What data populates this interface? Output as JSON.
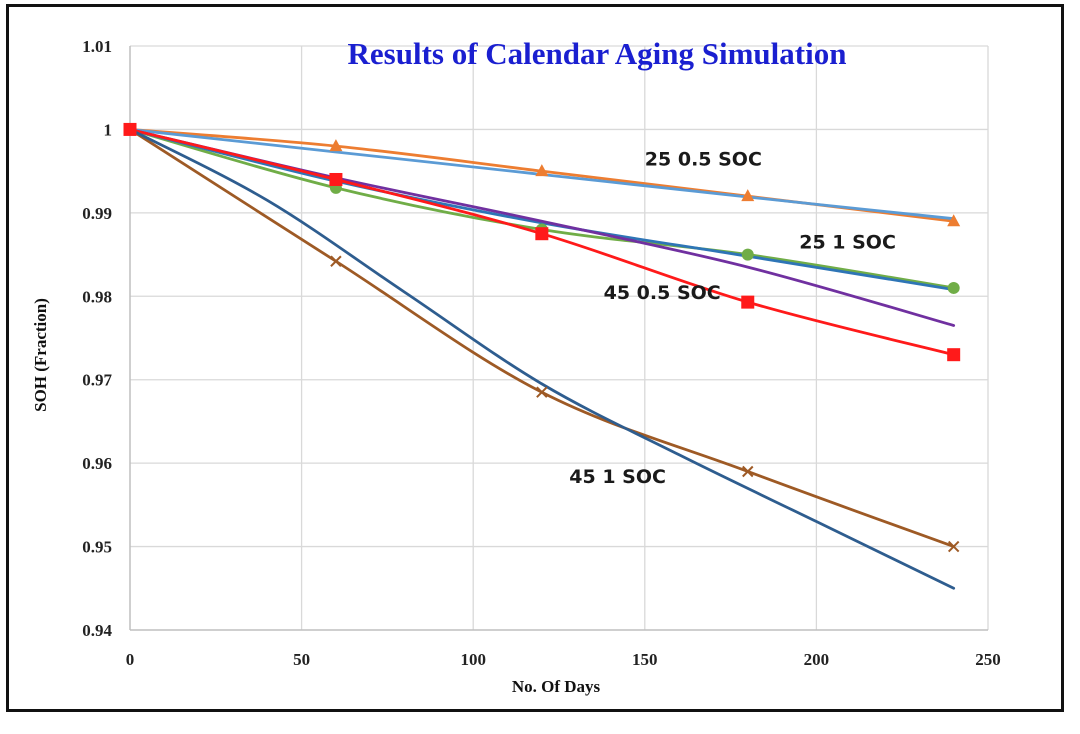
{
  "chart_data": {
    "type": "line",
    "title": "Results of Calendar Aging Simulation",
    "xlabel": "No. Of Days",
    "ylabel": "SOH (Fraction)",
    "xlim": [
      0,
      250
    ],
    "ylim": [
      0.94,
      1.01
    ],
    "x_ticks": [
      0,
      50,
      100,
      150,
      200,
      250
    ],
    "y_ticks": [
      0.94,
      0.95,
      0.96,
      0.97,
      0.98,
      0.99,
      1,
      1.01
    ],
    "x_tick_labels": [
      "0",
      "50",
      "100",
      "150",
      "200",
      "250"
    ],
    "y_tick_labels": [
      "0.94",
      "0.95",
      "0.96",
      "0.97",
      "0.98",
      "0.99",
      "1",
      "1.01"
    ],
    "grid": true,
    "legend": "none",
    "series": [
      {
        "color": "#ed7d31",
        "marker": "triangle",
        "points": [
          [
            0,
            1.0
          ],
          [
            60,
            0.998
          ],
          [
            120,
            0.995
          ],
          [
            180,
            0.992
          ],
          [
            240,
            0.989
          ]
        ]
      },
      {
        "color": "#5b9bd5",
        "marker": "none",
        "points": [
          [
            0,
            1.0
          ],
          [
            60,
            0.9973
          ],
          [
            120,
            0.9946
          ],
          [
            180,
            0.9919
          ],
          [
            240,
            0.9893
          ]
        ]
      },
      {
        "color": "#70ad47",
        "marker": "circle",
        "points": [
          [
            0,
            1.0
          ],
          [
            60,
            0.993
          ],
          [
            120,
            0.988
          ],
          [
            180,
            0.985
          ],
          [
            240,
            0.981
          ]
        ]
      },
      {
        "color": "#2e75b6",
        "marker": "none",
        "points": [
          [
            0,
            1.0
          ],
          [
            60,
            0.9938
          ],
          [
            120,
            0.9888
          ],
          [
            180,
            0.9848
          ],
          [
            240,
            0.9808
          ]
        ]
      },
      {
        "color": "#7030a0",
        "marker": "none",
        "points": [
          [
            0,
            1.0
          ],
          [
            60,
            0.9942
          ],
          [
            120,
            0.989
          ],
          [
            180,
            0.9835
          ],
          [
            240,
            0.9765
          ]
        ]
      },
      {
        "color": "#ff1a1a",
        "marker": "square",
        "points": [
          [
            0,
            1.0
          ],
          [
            60,
            0.994
          ],
          [
            120,
            0.9875
          ],
          [
            180,
            0.9793
          ],
          [
            240,
            0.973
          ]
        ]
      },
      {
        "color": "#9e5a25",
        "marker": "x",
        "points": [
          [
            0,
            1.0
          ],
          [
            60,
            0.9842
          ],
          [
            120,
            0.9685
          ],
          [
            180,
            0.959
          ],
          [
            240,
            0.95
          ]
        ]
      },
      {
        "color": "#2e5d8f",
        "marker": "none",
        "points": [
          [
            0,
            1.0
          ],
          [
            40,
            0.9915
          ],
          [
            80,
            0.9805
          ],
          [
            120,
            0.9695
          ],
          [
            160,
            0.961
          ],
          [
            200,
            0.953
          ],
          [
            240,
            0.945
          ]
        ]
      }
    ],
    "annotations": [
      {
        "text": "25 0.5 SOC",
        "x": 150,
        "y": 0.9957
      },
      {
        "text": "25 1 SOC",
        "x": 195,
        "y": 0.9857
      },
      {
        "text": "45 0.5 SOC",
        "x": 138,
        "y": 0.9797
      },
      {
        "text": "45 1 SOC",
        "x": 128,
        "y": 0.9576
      }
    ]
  }
}
